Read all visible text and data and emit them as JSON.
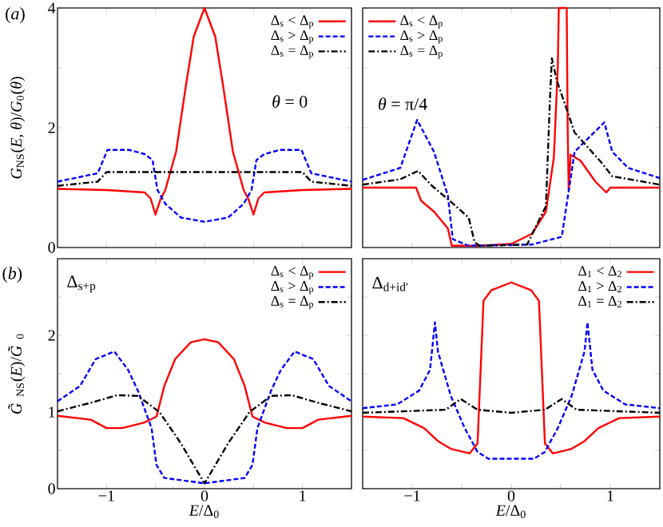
{
  "chart_data": [
    {
      "type": "line",
      "ylabel": "*G*$_{NS}$(*E*, *θ*)/*G*$_{0}$(*θ*)",
      "annotations": [
        "(*a*)",
        "*θ* = 0"
      ],
      "xlim": [
        -1.5,
        1.5
      ],
      "ylim": [
        0,
        4
      ],
      "xticks": [
        {
          "value": -1,
          "label": null
        },
        {
          "value": -0.5,
          "label": null
        },
        {
          "value": 0,
          "label": null
        },
        {
          "value": 0.5,
          "label": null
        },
        {
          "value": 1,
          "label": null
        }
      ],
      "yticks": [
        0,
        {
          "value": 1,
          "label": null
        },
        2,
        {
          "value": 3,
          "label": null
        },
        4
      ],
      "tick_labels": "y",
      "legend": "top right",
      "series": [
        {
          "name": "Δ$_{s}$ < Δ$_{p}$",
          "color": "#ff0000",
          "line_style": "solid",
          "x": [
            -1.5,
            -1.0,
            -0.61,
            -0.55,
            -0.5,
            -0.45,
            -0.4,
            -0.29,
            -0.19,
            -0.11,
            0,
            0.11,
            0.19,
            0.29,
            0.4,
            0.45,
            0.5,
            0.55,
            0.61,
            1.0,
            1.5
          ],
          "values": [
            0.98,
            0.96,
            0.92,
            0.82,
            0.55,
            0.8,
            0.96,
            1.6,
            2.7,
            3.52,
            4.0,
            3.52,
            2.7,
            1.6,
            0.96,
            0.8,
            0.55,
            0.82,
            0.92,
            0.96,
            0.98
          ]
        },
        {
          "name": "Δ$_{s}$ > Δ$_{p}$",
          "color": "#0000ff",
          "line_style": "dashed",
          "x": [
            -1.5,
            -1.09,
            -0.99,
            -0.77,
            -0.61,
            -0.53,
            -0.48,
            -0.4,
            -0.24,
            0,
            0.24,
            0.4,
            0.48,
            0.53,
            0.61,
            0.77,
            0.99,
            1.09,
            1.5
          ],
          "values": [
            1.1,
            1.24,
            1.63,
            1.63,
            1.56,
            1.46,
            0.96,
            0.73,
            0.5,
            0.43,
            0.5,
            0.73,
            0.96,
            1.46,
            1.56,
            1.63,
            1.63,
            1.24,
            1.1
          ]
        },
        {
          "name": "Δ$_{s}$ = Δ$_{p}$",
          "color": "#000000",
          "line_style": "dashdot",
          "x": [
            -1.5,
            -1.09,
            -1.0,
            1.0,
            1.09,
            1.5
          ],
          "values": [
            1.03,
            1.1,
            1.26,
            1.26,
            1.1,
            1.03
          ]
        }
      ]
    },
    {
      "type": "line",
      "annotations": [
        "*θ* = π/4"
      ],
      "xlim": [
        -1.5,
        1.5
      ],
      "ylim": [
        0,
        4
      ],
      "xticks": [
        {
          "value": -1,
          "label": null
        },
        {
          "value": -0.5,
          "label": null
        },
        {
          "value": 0,
          "label": null
        },
        {
          "value": 0.5,
          "label": null
        },
        {
          "value": 1,
          "label": null
        }
      ],
      "yticks": [
        {
          "value": 0,
          "label": null
        },
        {
          "value": 1,
          "label": null
        },
        {
          "value": 2,
          "label": null
        },
        {
          "value": 3,
          "label": null
        },
        {
          "value": 4,
          "label": null
        }
      ],
      "tick_labels": false,
      "legend": "top left",
      "series": [
        {
          "name": "Δ$_{s}$ < Δ$_{p}$",
          "color": "#ff0000",
          "line_style": "solid",
          "x": [
            -1.5,
            -0.96,
            -0.91,
            -0.78,
            -0.64,
            -0.6,
            -0.32,
            0,
            0.21,
            0.35,
            0.43,
            0.47,
            0.48,
            0.56,
            0.57,
            0.58,
            0.6,
            0.7,
            0.85,
            0.96,
            1.0,
            1.5
          ],
          "values": [
            1.0,
            1.0,
            0.78,
            0.6,
            0.32,
            0.03,
            0.03,
            0.06,
            0.23,
            0.6,
            1.5,
            3.0,
            4.0,
            4.0,
            2.0,
            0.96,
            1.55,
            1.45,
            1.1,
            0.92,
            1.0,
            1.0
          ]
        },
        {
          "name": "Δ$_{s}$ > Δ$_{p}$",
          "color": "#0000ff",
          "line_style": "dashed",
          "x": [
            -1.5,
            -1.12,
            -0.95,
            -0.78,
            -0.64,
            -0.59,
            -0.43,
            0.21,
            0.51,
            0.59,
            0.64,
            0.94,
            1.02,
            1.18,
            1.5
          ],
          "values": [
            1.13,
            1.33,
            2.13,
            1.6,
            0.87,
            0.14,
            0.03,
            0.05,
            0.18,
            1.05,
            1.6,
            2.09,
            1.6,
            1.33,
            1.16
          ]
        },
        {
          "name": "Δ$_{s}$ = Δ$_{p}$",
          "color": "#000000",
          "line_style": "dashdot",
          "x": [
            -1.5,
            -1.12,
            -0.94,
            -0.8,
            -0.62,
            -0.43,
            -0.37,
            -0.32,
            0.16,
            0.35,
            0.39,
            0.41,
            0.46,
            0.64,
            0.91,
            1.02,
            1.5
          ],
          "values": [
            1.05,
            1.14,
            1.28,
            1.03,
            0.78,
            0.5,
            0.09,
            0.03,
            0.05,
            0.69,
            2.43,
            3.16,
            2.79,
            1.92,
            1.42,
            1.19,
            1.05
          ]
        }
      ]
    },
    {
      "type": "line",
      "ylabel": "*G̃*$_{NS}$(*E*)/*G̃*$_{0}$",
      "xlabel": "*E*/Δ$_{0}$",
      "annotations": [
        "(*b*)",
        "Δ$_{s+p}$"
      ],
      "xlim": [
        -1.5,
        1.5
      ],
      "ylim": [
        0,
        3
      ],
      "xticks": [
        {
          "value": -1,
          "label": "−1"
        },
        {
          "value": -0.5,
          "label": null
        },
        0,
        {
          "value": 0.5,
          "label": null
        },
        1
      ],
      "yticks": [
        0,
        {
          "value": 0.5,
          "label": null
        },
        1,
        {
          "value": 1.5,
          "label": null
        },
        2,
        {
          "value": 2.5,
          "label": null
        }
      ],
      "legend": "top right",
      "series": [
        {
          "name": "Δ$_{s}$ < Δ$_{p}$",
          "color": "#ff0000",
          "line_style": "solid",
          "x": [
            -1.5,
            -1.16,
            -1.0,
            -0.84,
            -0.62,
            -0.49,
            -0.41,
            -0.3,
            -0.14,
            0,
            0.14,
            0.3,
            0.41,
            0.49,
            0.62,
            0.84,
            1.0,
            1.16,
            1.5
          ],
          "values": [
            0.95,
            0.9,
            0.79,
            0.79,
            0.86,
            0.94,
            1.34,
            1.69,
            1.91,
            1.95,
            1.91,
            1.69,
            1.34,
            0.94,
            0.86,
            0.79,
            0.79,
            0.9,
            0.95
          ]
        },
        {
          "name": "Δ$_{s}$ > Δ$_{p}$",
          "color": "#0000ff",
          "line_style": "dashed",
          "x": [
            -1.5,
            -1.27,
            -1.11,
            -0.92,
            -0.78,
            -0.68,
            -0.54,
            -0.49,
            -0.41,
            0,
            0.41,
            0.49,
            0.54,
            0.68,
            0.78,
            0.92,
            1.11,
            1.27,
            1.5
          ],
          "values": [
            1.14,
            1.34,
            1.69,
            1.79,
            1.55,
            1.28,
            0.79,
            0.31,
            0.14,
            0.07,
            0.14,
            0.31,
            0.79,
            1.28,
            1.55,
            1.79,
            1.69,
            1.34,
            1.14
          ]
        },
        {
          "name": "Δ$_{s}$ = Δ$_{p}$",
          "color": "#000000",
          "line_style": "dashdot",
          "x": [
            -1.5,
            -1.16,
            -0.89,
            -0.68,
            -0.46,
            -0.24,
            -0.08,
            0,
            0.08,
            0.24,
            0.46,
            0.68,
            0.89,
            1.16,
            1.5
          ],
          "values": [
            1.01,
            1.12,
            1.22,
            1.21,
            1.0,
            0.59,
            0.24,
            0.07,
            0.24,
            0.59,
            1.0,
            1.21,
            1.22,
            1.12,
            1.01
          ]
        }
      ]
    },
    {
      "type": "line",
      "xlabel": "*E*/Δ$_{0}$",
      "annotations": [
        "Δ$_{d+id′}$"
      ],
      "xlim": [
        -1.5,
        1.5
      ],
      "ylim": [
        0,
        3
      ],
      "xticks": [
        {
          "value": -1,
          "label": "−1"
        },
        {
          "value": -0.5,
          "label": null
        },
        0,
        {
          "value": 0.5,
          "label": null
        },
        1
      ],
      "yticks": [
        {
          "value": 0,
          "label": null
        },
        {
          "value": 0.5,
          "label": null
        },
        {
          "value": 1,
          "label": null
        },
        {
          "value": 1.5,
          "label": null
        },
        {
          "value": 2,
          "label": null
        },
        {
          "value": 2.5,
          "label": null
        }
      ],
      "tick_labels": "x",
      "legend": "top right",
      "series": [
        {
          "name": "Δ$_{1}$ < Δ$_{2}$",
          "color": "#ff0000",
          "line_style": "solid",
          "x": [
            -1.5,
            -1.09,
            -0.88,
            -0.74,
            -0.61,
            -0.42,
            -0.34,
            -0.28,
            -0.24,
            -0.2,
            0,
            0.2,
            0.24,
            0.28,
            0.34,
            0.42,
            0.61,
            0.74,
            0.88,
            1.09,
            1.5
          ],
          "values": [
            0.94,
            0.92,
            0.79,
            0.62,
            0.52,
            0.46,
            0.59,
            2.45,
            2.52,
            2.59,
            2.69,
            2.59,
            2.52,
            2.45,
            0.59,
            0.46,
            0.52,
            0.62,
            0.79,
            0.92,
            0.94
          ]
        },
        {
          "name": "Δ$_{1}$ > Δ$_{2}$",
          "color": "#0000ff",
          "line_style": "dashed",
          "x": [
            -1.5,
            -1.15,
            -0.93,
            -0.82,
            -0.77,
            -0.74,
            -0.61,
            -0.47,
            -0.34,
            -0.23,
            0,
            0.23,
            0.34,
            0.47,
            0.61,
            0.74,
            0.77,
            0.82,
            0.93,
            1.15,
            1.5
          ],
          "values": [
            1.05,
            1.1,
            1.28,
            1.55,
            2.17,
            1.79,
            1.21,
            0.79,
            0.48,
            0.39,
            0.39,
            0.39,
            0.48,
            0.79,
            1.21,
            1.79,
            2.17,
            1.55,
            1.28,
            1.1,
            1.05
          ]
        },
        {
          "name": "Δ$_{1}$ = Δ$_{2}$",
          "color": "#000000",
          "line_style": "dashdot",
          "x": [
            -1.5,
            -0.66,
            -0.51,
            -0.34,
            0,
            0.34,
            0.51,
            0.66,
            1.5
          ],
          "values": [
            0.99,
            1.03,
            1.17,
            1.03,
            0.99,
            1.03,
            1.17,
            1.03,
            0.99
          ]
        }
      ]
    }
  ]
}
